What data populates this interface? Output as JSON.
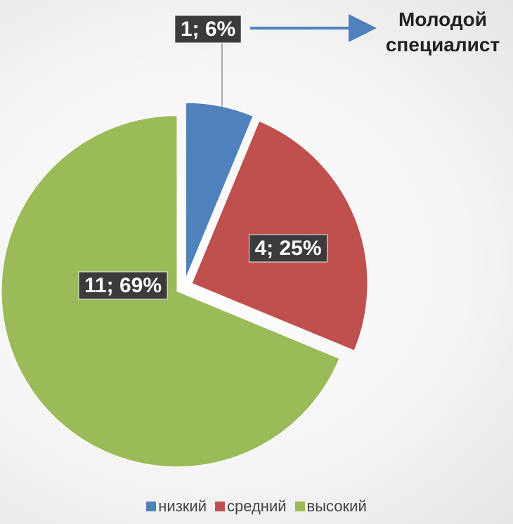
{
  "chart_data": {
    "type": "pie",
    "categories": [
      "низкий",
      "средний",
      "высокий"
    ],
    "values": [
      1,
      4,
      11
    ],
    "value_labels": [
      "1; 6%",
      "4; 25%",
      "11; 69%"
    ],
    "colors": [
      "#4f81bd",
      "#c0504d",
      "#9bbb59"
    ],
    "annotation": "Молодой специалист",
    "legend": "bottom"
  }
}
